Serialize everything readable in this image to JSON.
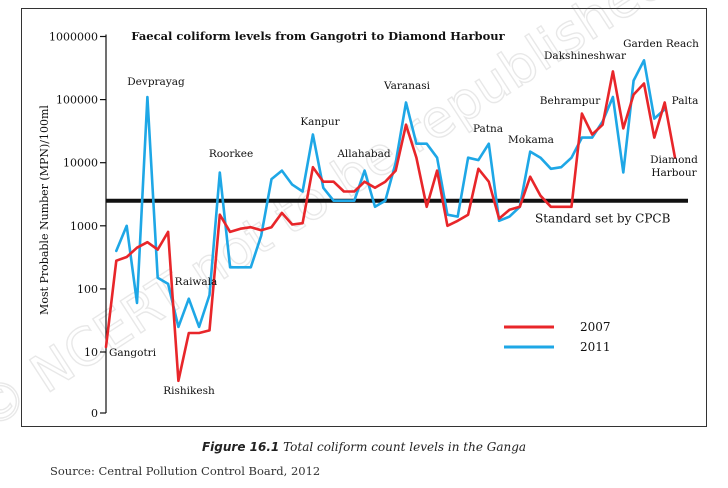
{
  "chart_data": {
    "type": "line",
    "title": "Faecal coliform levels from Gangotri to Diamond Harbour",
    "ylabel": "Most Probable Number (MPN)/100ml",
    "y_scale": "log",
    "y_ticks": [
      {
        "value": 0,
        "label": "0"
      },
      {
        "value": 10,
        "label": "10"
      },
      {
        "value": 100,
        "label": "100"
      },
      {
        "value": 1000,
        "label": "1000"
      },
      {
        "value": 10000,
        "label": "10000"
      },
      {
        "value": 100000,
        "label": "100000"
      },
      {
        "value": 1000000,
        "label": "1000000"
      }
    ],
    "grid": false,
    "legend_position": "bottom-right",
    "reference_line": {
      "value": 2500,
      "label": "Standard set by CPCB"
    },
    "series": [
      {
        "name": "2007",
        "color": "#e8262a",
        "values": [
          12,
          280,
          320,
          450,
          550,
          420,
          800,
          3.5,
          20,
          20,
          22,
          1500,
          800,
          900,
          950,
          850,
          950,
          1600,
          1050,
          1100,
          8500,
          5000,
          5000,
          3500,
          3500,
          5000,
          4000,
          5000,
          7500,
          40000,
          12000,
          2000,
          7500,
          1000,
          1200,
          1500,
          8000,
          5000,
          1300,
          1800,
          2000,
          6000,
          3000,
          2000,
          2000,
          2000,
          60000,
          28000,
          40000,
          280000,
          35000,
          120000,
          180000,
          25000,
          90000,
          12000
        ]
      },
      {
        "name": "2011",
        "color": "#1ea7e6",
        "values": [
          null,
          400,
          1000,
          60,
          110000,
          150,
          120,
          25,
          70,
          25,
          80,
          7000,
          220,
          220,
          220,
          700,
          5500,
          7500,
          4500,
          3500,
          28000,
          4000,
          2500,
          2500,
          2500,
          7500,
          2000,
          2500,
          10000,
          90000,
          20000,
          20000,
          12000,
          1500,
          1400,
          12000,
          11000,
          20000,
          1200,
          1400,
          2000,
          15000,
          12000,
          8000,
          8500,
          12000,
          25000,
          25000,
          45000,
          110000,
          7000,
          200000,
          420000,
          50000,
          70000,
          null
        ]
      }
    ],
    "annotations": [
      {
        "text": "Gangotri",
        "index": 0
      },
      {
        "text": "Devprayag",
        "index": 4
      },
      {
        "text": "Rishikesh",
        "index": 7
      },
      {
        "text": "Raiwala",
        "index": 9
      },
      {
        "text": "Roorkee",
        "index": 11
      },
      {
        "text": "Kanpur",
        "index": 20
      },
      {
        "text": "Allahabad",
        "index": 25
      },
      {
        "text": "Varanasi",
        "index": 29
      },
      {
        "text": "Patna",
        "index": 37
      },
      {
        "text": "Mokama",
        "index": 41
      },
      {
        "text": "Behrampur",
        "index": 46
      },
      {
        "text": "Dakshineshwar",
        "index": 49
      },
      {
        "text": "Garden Reach",
        "index": 52
      },
      {
        "text": "Palta",
        "index": 54
      },
      {
        "text": "Diamond",
        "index": 55
      },
      {
        "text": "Harbour",
        "index": 55
      }
    ]
  },
  "watermark": "© NCERT not to be republished",
  "caption": {
    "figure_number": "Figure 16.1",
    "text": "Total coliform count levels in the Ganga"
  },
  "source": "Source: Central Pollution Control Board, 2012"
}
